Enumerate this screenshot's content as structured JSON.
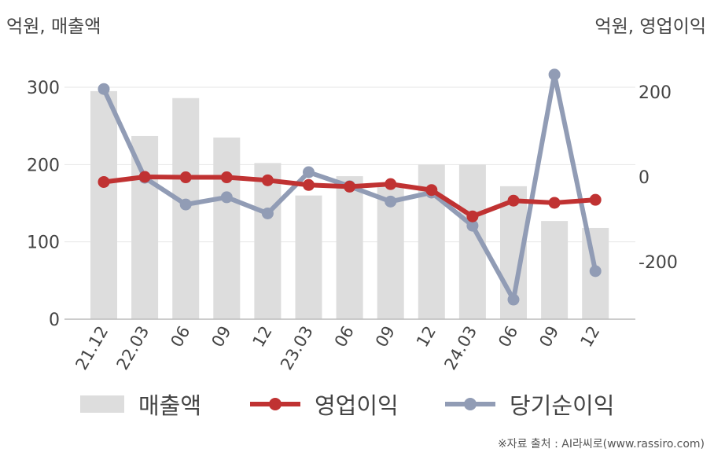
{
  "chart_data": {
    "type": "bar",
    "units": {
      "left": "억원, 매출액",
      "right": "억원, 영업이익"
    },
    "categories": [
      "21.12",
      "22.03",
      "06",
      "09",
      "12",
      "23.03",
      "06",
      "09",
      "12",
      "24.03",
      "06",
      "09",
      "12"
    ],
    "series": [
      {
        "name": "매출액",
        "kind": "bar",
        "axis": "left",
        "color": "#dddddd",
        "values": [
          295,
          237,
          286,
          235,
          202,
          160,
          185,
          174,
          200,
          200,
          172,
          127,
          118
        ]
      },
      {
        "name": "영업이익",
        "kind": "line",
        "axis": "right",
        "color": "#c03232",
        "values": [
          -12,
          0,
          -1,
          -1,
          -8,
          -19,
          -23,
          -17,
          -31,
          -93,
          -56,
          -61,
          -54
        ]
      },
      {
        "name": "당기순이익",
        "kind": "line",
        "axis": "right",
        "color": "#919cb5",
        "values": [
          207,
          -2,
          -65,
          -48,
          -86,
          11,
          -22,
          -58,
          -37,
          -115,
          -289,
          241,
          -222
        ]
      }
    ],
    "y_left": {
      "min": 0,
      "max": 300,
      "ticks": [
        "0",
        "100",
        "200",
        "300"
      ],
      "tick_values": [
        0,
        100,
        200,
        300
      ]
    },
    "y_right": {
      "min": -200,
      "max": 200,
      "ticks": [
        "-200",
        "0",
        "200"
      ],
      "tick_values": [
        -200,
        0,
        200
      ]
    },
    "grid": true,
    "legend_position": "bottom",
    "source": "※자료 출처 : AI라씨로(www.rassiro.com)"
  }
}
